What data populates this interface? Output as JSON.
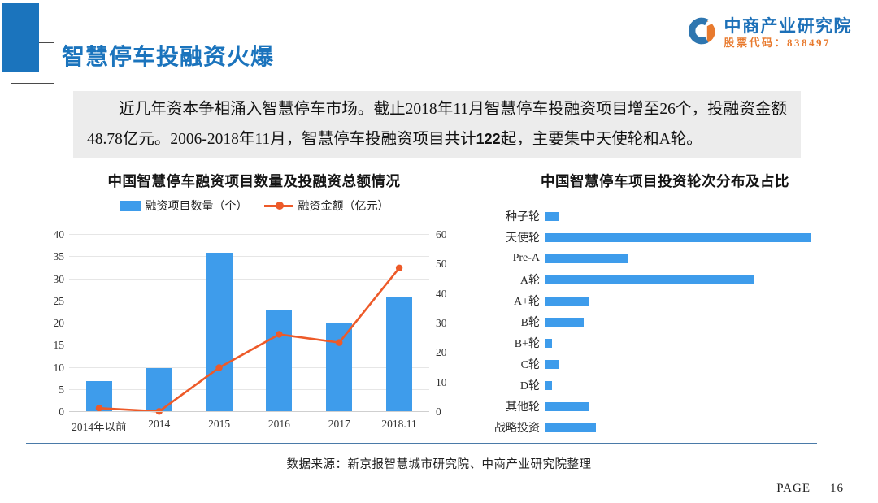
{
  "header": {
    "title": "智慧停车投融资火爆",
    "logo": {
      "company": "中商产业研究院",
      "stock_code": "股票代码：838497"
    }
  },
  "summary": {
    "text_before": "近几年资本争相涌入智慧停车市场。截止2018年11月智慧停车投融资项目增至26个，投融资金额48.78亿元。2006-2018年11月，智慧停车投融资项目共计",
    "highlight": "122",
    "text_after": "起，主要集中天使轮和A轮。"
  },
  "footer": {
    "source_note": "数据来源：新京报智慧城市研究院、中商产业研究院整理",
    "page_label": "PAGE",
    "page_number": "16"
  },
  "colors": {
    "accent_blue": "#1b74bd",
    "bar_blue": "#3e9ceb",
    "line_orange": "#ed5a29",
    "logo_blue": "#2e76b0",
    "logo_orange": "#e87a2e",
    "summary_bg": "#ececec",
    "divider_blue": "#4a7aa8"
  },
  "chart_data": [
    {
      "type": "bar",
      "subtype": "combo-bar-line",
      "title": "中国智慧停车融资项目数量及投融资总额情况",
      "categories": [
        "2014年以前",
        "2014",
        "2015",
        "2016",
        "2017",
        "2018.11"
      ],
      "series": [
        {
          "name": "融资项目数量（个）",
          "type": "bar",
          "axis": "left",
          "values": [
            7,
            10,
            36,
            23,
            20,
            26
          ]
        },
        {
          "name": "融资金额（亿元）",
          "type": "line",
          "axis": "right",
          "values": [
            1.3,
            0.2,
            15,
            26.3,
            23.5,
            48.78
          ]
        }
      ],
      "left_axis": {
        "min": 0,
        "max": 40,
        "step": 5
      },
      "right_axis": {
        "min": 0,
        "max": 60,
        "step": 10
      },
      "grid": true,
      "legend_position": "top"
    },
    {
      "type": "bar",
      "subtype": "horizontal-bar",
      "title": "中国智慧停车项目投资轮次分布及占比",
      "categories": [
        "种子轮",
        "天使轮",
        "Pre-A",
        "A轮",
        "A+轮",
        "B轮",
        "B+轮",
        "C轮",
        "D轮",
        "其他轮",
        "战略投资"
      ],
      "values": [
        2,
        42,
        13,
        33,
        7,
        6,
        1,
        2,
        1,
        7,
        8
      ],
      "total_projects": 122,
      "xlim": [
        0,
        44
      ],
      "grid": false
    }
  ]
}
